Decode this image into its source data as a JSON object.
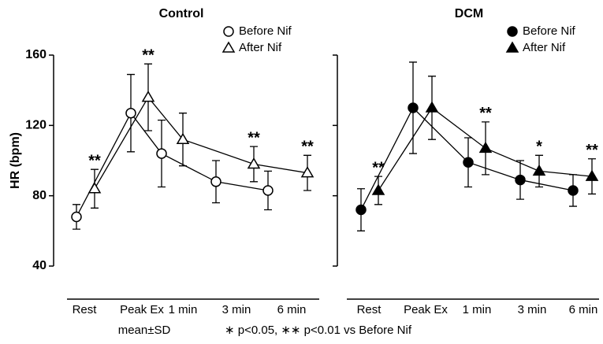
{
  "chart_data": [
    {
      "type": "line",
      "title": "Control",
      "ylabel": "HR (bpm)",
      "categories": [
        "Rest",
        "Peak Ex",
        "1 min",
        "3 min",
        "6 min"
      ],
      "ylim": [
        40,
        160
      ],
      "yticks": [
        40,
        80,
        120,
        160
      ],
      "series": [
        {
          "name": "Before Nif",
          "marker": "circle",
          "color": "#000",
          "fill": "#fff",
          "values": [
            68,
            127,
            104,
            88,
            83
          ],
          "errors": [
            7,
            22,
            19,
            12,
            11
          ]
        },
        {
          "name": "After Nif",
          "marker": "triangle",
          "color": "#000",
          "fill": "#fff",
          "values": [
            84,
            136,
            112,
            98,
            93
          ],
          "errors": [
            11,
            19,
            15,
            10,
            10
          ]
        }
      ],
      "annotations": [
        "**",
        "**",
        null,
        "**",
        "**"
      ]
    },
    {
      "type": "line",
      "title": "DCM",
      "categories": [
        "Rest",
        "Peak Ex",
        "1 min",
        "3 min",
        "6 min"
      ],
      "ylim": [
        40,
        160
      ],
      "yticks": [
        40,
        80,
        120,
        160
      ],
      "series": [
        {
          "name": "Before Nif",
          "marker": "circle",
          "color": "#000",
          "fill": "#000",
          "values": [
            72,
            130,
            99,
            89,
            83
          ],
          "errors": [
            12,
            26,
            14,
            11,
            9
          ]
        },
        {
          "name": "After Nif",
          "marker": "triangle",
          "color": "#000",
          "fill": "#000",
          "values": [
            83,
            130,
            107,
            94,
            91
          ],
          "errors": [
            8,
            18,
            15,
            9,
            10
          ]
        }
      ],
      "annotations": [
        "**",
        null,
        "**",
        "*",
        "**"
      ]
    }
  ],
  "notes": [
    "mean±SD",
    "∗ p<0.05, ∗∗ p<0.01 vs Before Nif"
  ]
}
